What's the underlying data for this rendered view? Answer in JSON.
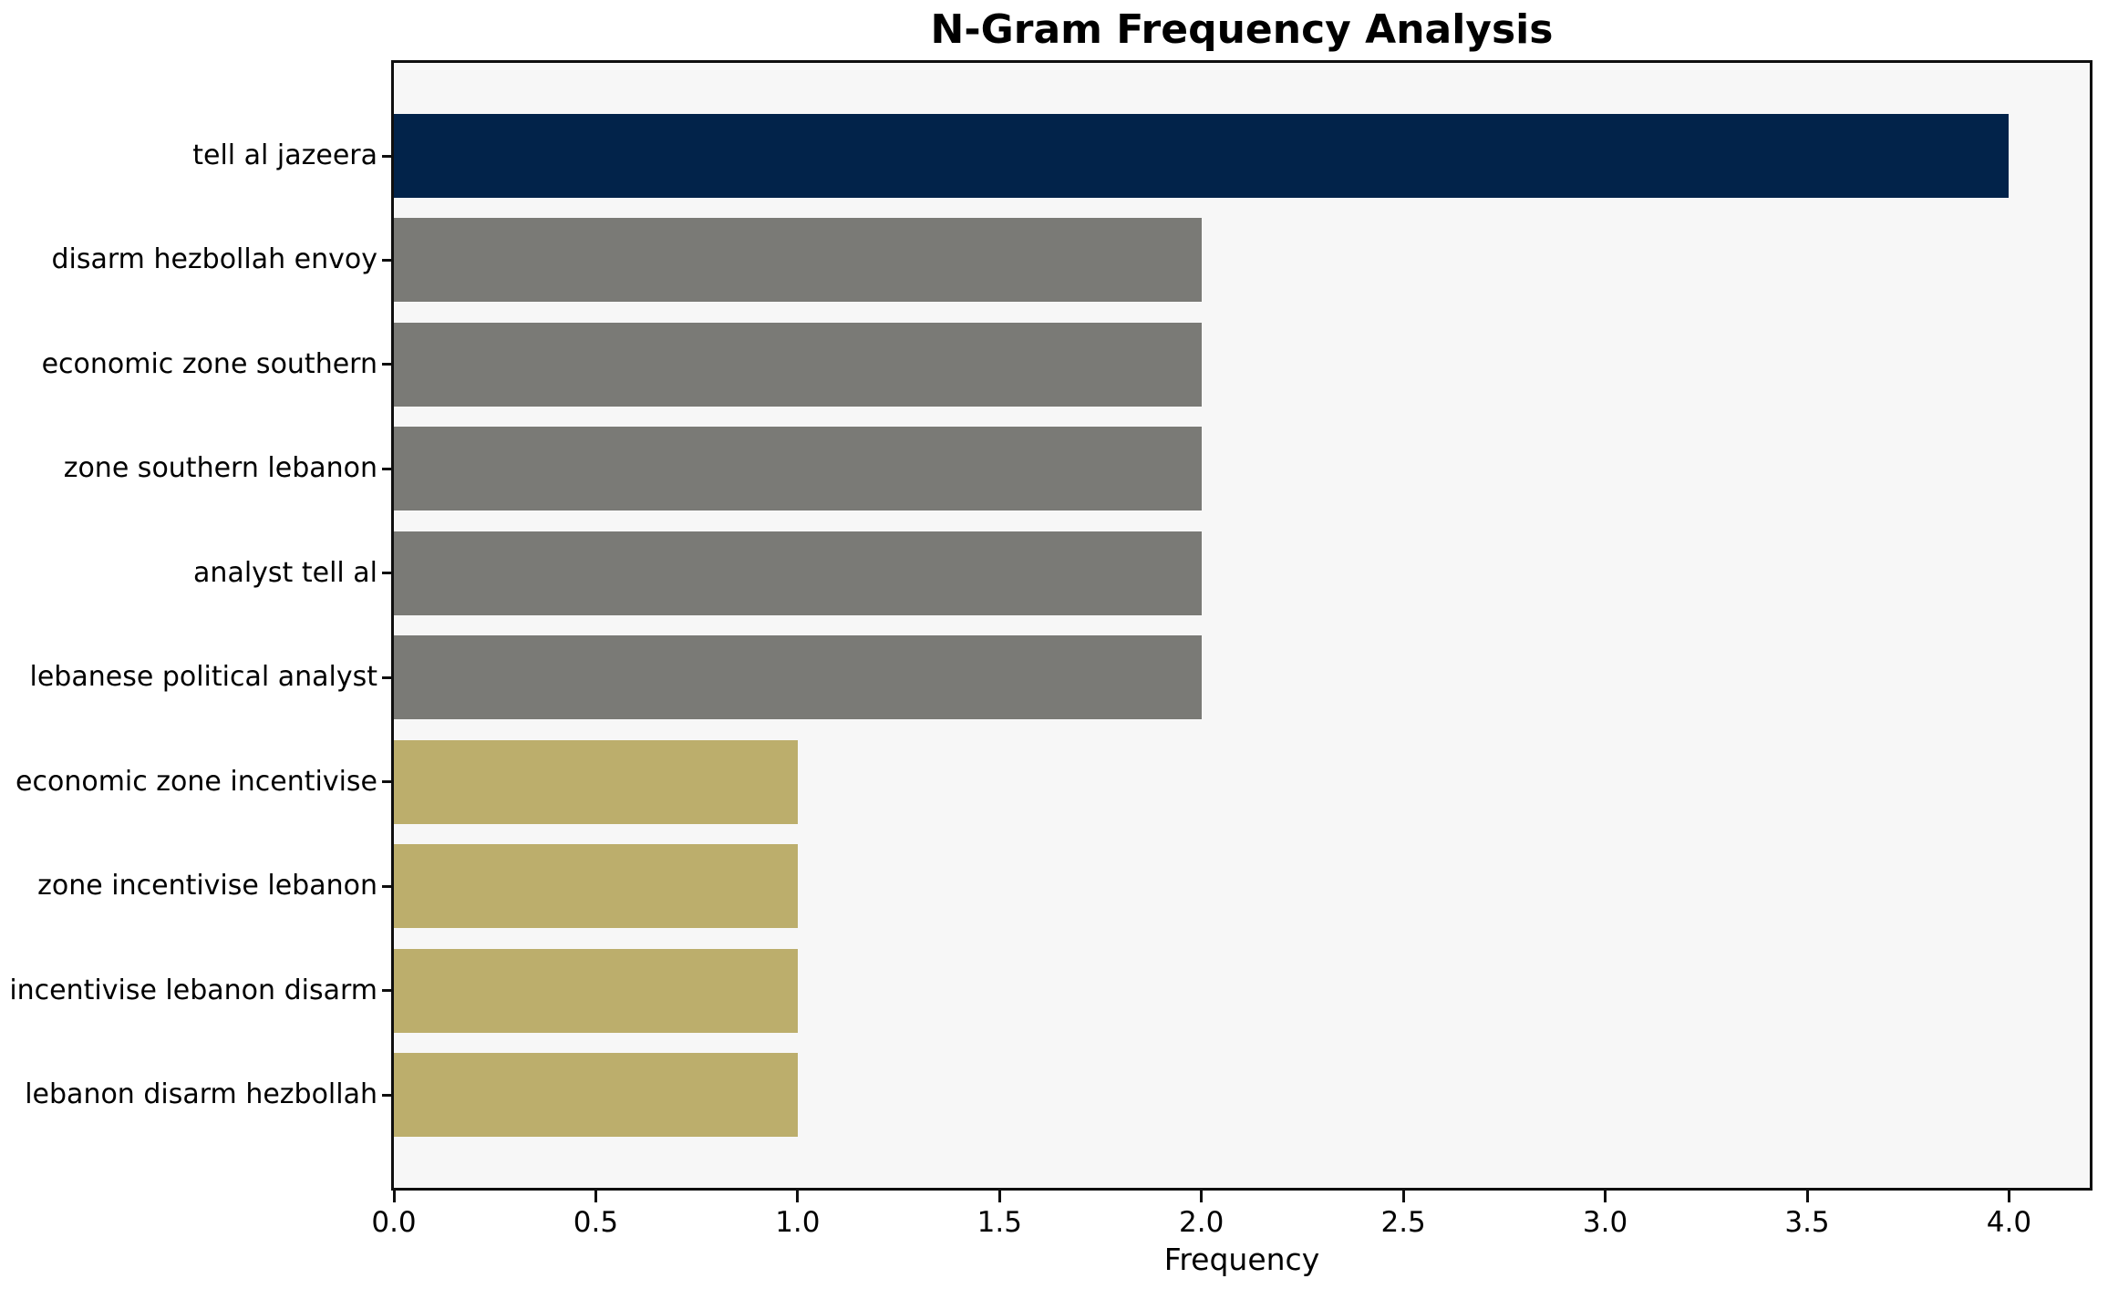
{
  "figure": {
    "background": "#ffffff"
  },
  "chart_data": {
    "type": "bar",
    "orientation": "horizontal",
    "title": "N-Gram Frequency Analysis",
    "xlabel": "Frequency",
    "ylabel": "",
    "categories": [
      "tell al jazeera",
      "disarm hezbollah envoy",
      "economic zone southern",
      "zone southern lebanon",
      "analyst tell al",
      "lebanese political analyst",
      "economic zone incentivise",
      "zone incentivise lebanon",
      "incentivise lebanon disarm",
      "lebanon disarm hezbollah"
    ],
    "values": [
      4,
      2,
      2,
      2,
      2,
      2,
      1,
      1,
      1,
      1
    ],
    "bar_colors": [
      "#02234a",
      "#7a7a76",
      "#7a7a76",
      "#7a7a76",
      "#7a7a76",
      "#7a7a76",
      "#bcae6c",
      "#bcae6c",
      "#bcae6c",
      "#bcae6c"
    ],
    "xlim": [
      0,
      4.2
    ],
    "xticks": [
      0,
      0.5,
      1.0,
      1.5,
      2.0,
      2.5,
      3.0,
      3.5,
      4.0
    ],
    "xtick_labels": [
      "0.0",
      "0.5",
      "1.0",
      "1.5",
      "2.0",
      "2.5",
      "3.0",
      "3.5",
      "4.0"
    ],
    "grid": false,
    "legend": null,
    "plot_background": "#f7f7f7",
    "spine_color": "#0f0f0f",
    "text_color": "#000000"
  }
}
